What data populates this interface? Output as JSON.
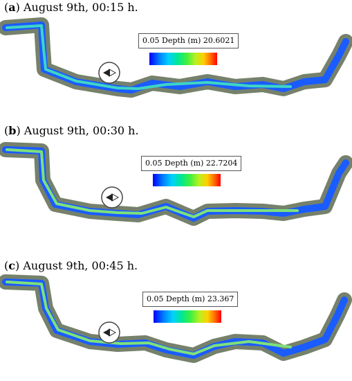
{
  "panels": [
    {
      "label": "a",
      "caption": "August 9th, 00:15 h.",
      "legend": {
        "min": "0.05",
        "title": "Depth (m)",
        "max": "20.6021"
      }
    },
    {
      "label": "b",
      "caption": "August 9th, 00:30 h.",
      "legend": {
        "min": "0.05",
        "title": "Depth (m)",
        "max": "22.7204"
      }
    },
    {
      "label": "c",
      "caption": "August 9th, 00:45 h.",
      "legend": {
        "min": "0.05",
        "title": "Depth (m)",
        "max": "23.367"
      }
    }
  ],
  "colors": {
    "bank": "#5e6b52",
    "water_shallow": "#1a5cff",
    "water_mid": "#3fd4c4",
    "water_deep": "#7ee07a"
  },
  "icons": [
    "compass-icon"
  ]
}
